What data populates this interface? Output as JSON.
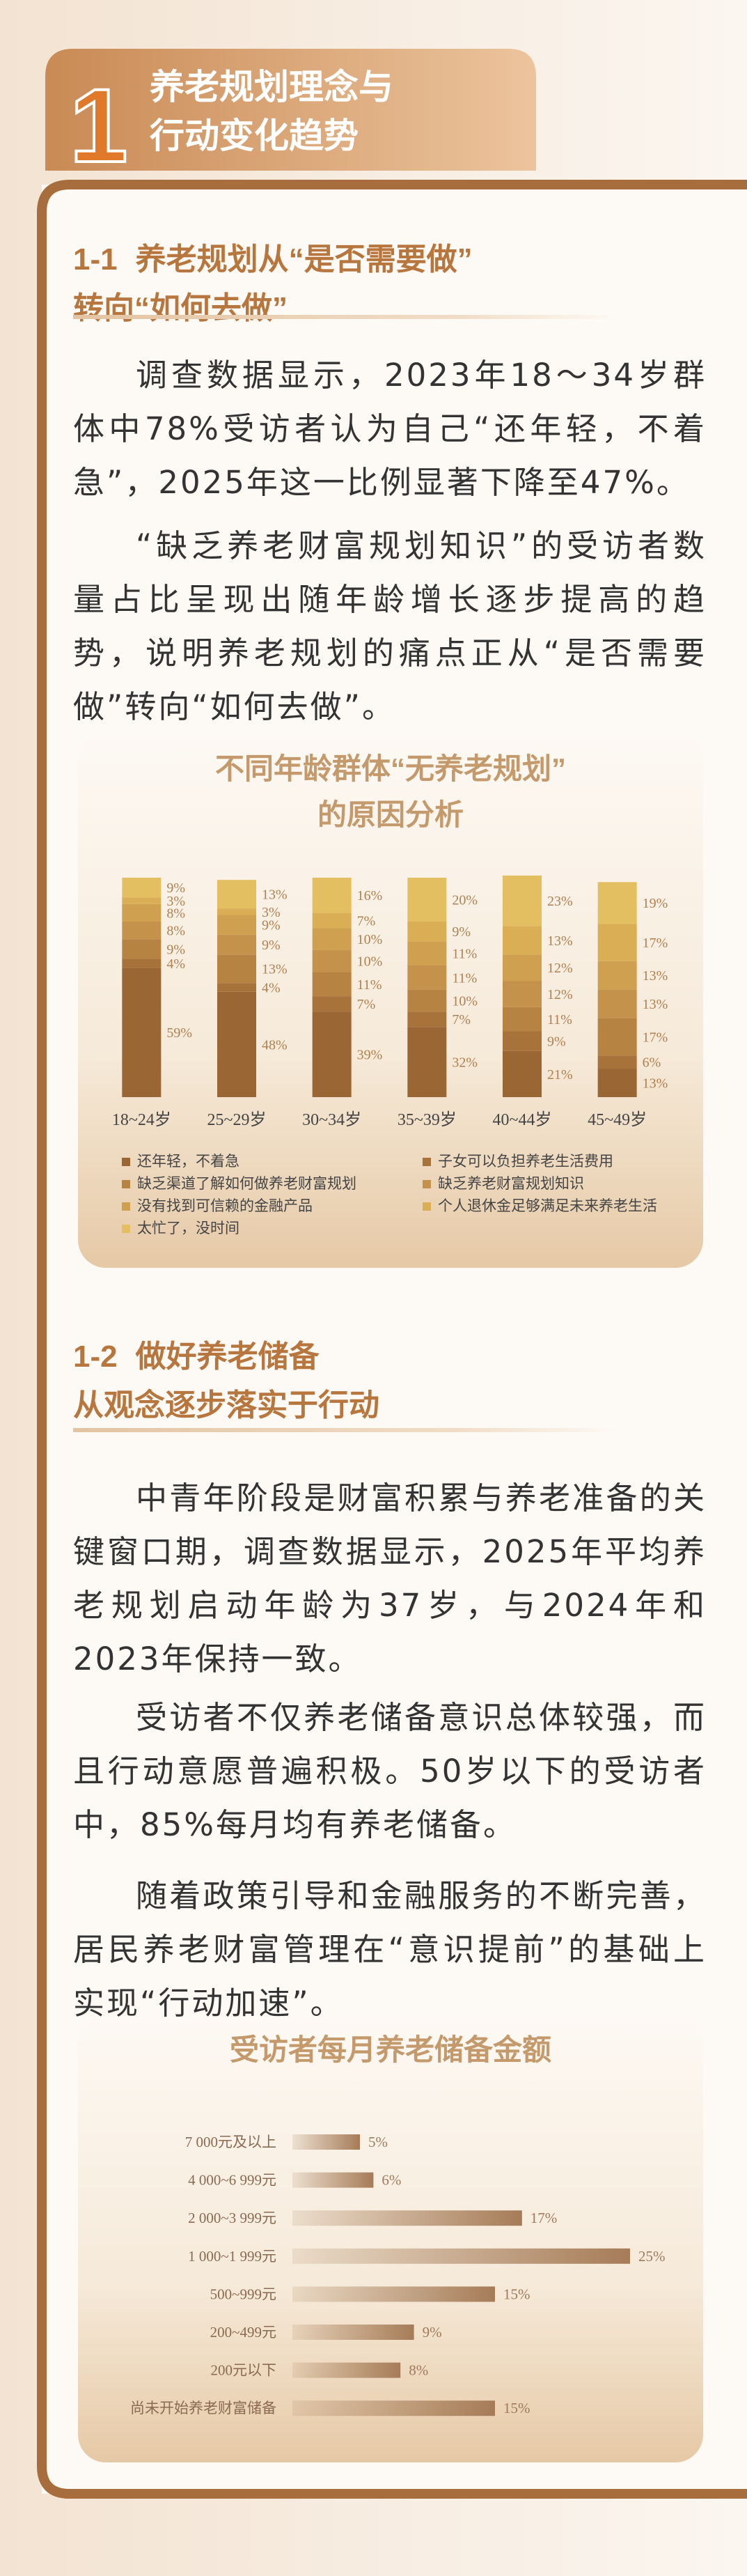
{
  "header": {
    "number": "1",
    "title": [
      "养老规划理念与",
      "行动变化趋势"
    ]
  },
  "sections": [
    {
      "number": "1-1",
      "title": [
        "养老规划从“是否需要做”",
        "转向“如何去做”"
      ],
      "paragraphs": [
        "调查数据显示，2023年18～34岁群体中78%受访者认为自己“还年轻，不着急”，2025年这一比例显著下降至47%。",
        "“缺乏养老财富规划知识”的受访者数量占比呈现出随年龄增长逐步提高的趋势，说明养老规划的痛点正从“是否需要做”转向“如何去做”。"
      ]
    },
    {
      "number": "1-2",
      "title": [
        "做好养老储备",
        "从观念逐步落实于行动"
      ],
      "paragraphs": [
        "中青年阶段是财富积累与养老准备的关键窗口期，调查数据显示，2025年平均养老规划启动年龄为37岁，与2024年和2023年保持一致。",
        "受访者不仅养老储备意识总体较强，而且行动意愿普遍积极。50岁以下的受访者中，85%每月均有养老储备。",
        "随着政策引导和金融服务的不断完善，居民养老财富管理在“意识提前”的基础上实现“行动加速”。"
      ]
    }
  ],
  "chart_data": [
    {
      "type": "bar",
      "stacked": true,
      "title": [
        "不同年龄群体“无养老规划”",
        "的原因分析"
      ],
      "categories": [
        "18~24岁",
        "25~29岁",
        "30~34岁",
        "35~39岁",
        "40~44岁",
        "45~49岁"
      ],
      "ylim": [
        0,
        100
      ],
      "series": [
        {
          "name": "还年轻，不着急",
          "color": "#9a6633",
          "values": [
            59,
            48,
            39,
            32,
            21,
            13
          ],
          "value_labels": [
            "59%",
            "48%",
            "39%",
            "32%",
            "21%",
            "13%"
          ]
        },
        {
          "name": "子女可以负担养老生活费用",
          "color": "#a8733b",
          "values": [
            4,
            4,
            7,
            7,
            9,
            6
          ],
          "value_labels": [
            "4%",
            "4%",
            "7%",
            "7%",
            "9%",
            "6%"
          ]
        },
        {
          "name": "缺乏渠道了解如何做养老财富规划",
          "color": "#b78343",
          "values": [
            9,
            13,
            11,
            10,
            11,
            17
          ],
          "value_labels": [
            "9%",
            "13%",
            "11%",
            "10%",
            "11%",
            "17%"
          ]
        },
        {
          "name": "缺乏养老财富规划知识",
          "color": "#c4924a",
          "values": [
            8,
            9,
            10,
            11,
            12,
            13
          ],
          "value_labels": [
            "8%",
            "9%",
            "10%",
            "11%",
            "12%",
            "13%"
          ]
        },
        {
          "name": "没有找到可信赖的金融产品",
          "color": "#cfa04f",
          "values": [
            8,
            9,
            10,
            11,
            12,
            13
          ],
          "value_labels": [
            "8%",
            "9%",
            "10%",
            "11%",
            "12%",
            "13%"
          ]
        },
        {
          "name": "个人退休金足够满足未来养老生活",
          "color": "#d9ae55",
          "values": [
            3,
            3,
            7,
            9,
            13,
            17
          ],
          "value_labels": [
            "3%",
            "3%",
            "7%",
            "9%",
            "13%",
            "17%"
          ]
        },
        {
          "name": "太忙了，没时间",
          "color": "#e4bf62",
          "values": [
            9,
            13,
            16,
            20,
            23,
            19
          ],
          "value_labels": [
            "9%",
            "13%",
            "16%",
            "20%",
            "23%",
            "19%"
          ]
        }
      ]
    },
    {
      "type": "bar",
      "orientation": "horizontal",
      "title": "受访者每月养老储备金额",
      "categories": [
        "7 000元及以上",
        "4 000~6 999元",
        "2 000~3 999元",
        "1 000~1 999元",
        "500~999元",
        "200~499元",
        "200元以下",
        "尚未开始养老财富储备"
      ],
      "values": [
        5,
        6,
        17,
        25,
        15,
        9,
        8,
        15
      ],
      "value_labels": [
        "5%",
        "6%",
        "17%",
        "25%",
        "15%",
        "9%",
        "8%",
        "15%"
      ],
      "xlim": [
        0,
        25
      ],
      "color": "#a67c58"
    }
  ]
}
